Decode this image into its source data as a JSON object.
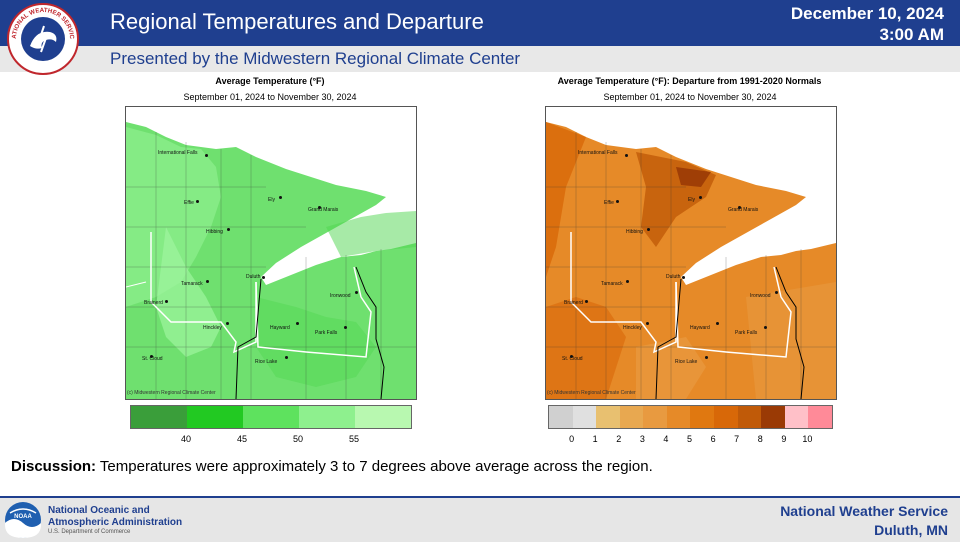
{
  "header": {
    "logo_text": "NATIONAL WEATHER SERVICE",
    "title": "Regional Temperatures and Departure",
    "date": "December 10, 2024",
    "time": "3:00 AM",
    "subtitle": "Presented by the Midwestern Regional Climate Center"
  },
  "left_map": {
    "title": "Average Temperature (°F)",
    "period": "September 01, 2024 to November 30, 2024",
    "credit": "(c) Midwestern Regional Climate Center",
    "legend_colors": [
      "#3a9e3a",
      "#22c922",
      "#5ee25e",
      "#8ef08e",
      "#b8f8b0"
    ],
    "legend_ticks": [
      "40",
      "45",
      "50",
      "55"
    ]
  },
  "right_map": {
    "title": "Average Temperature (°F): Departure from 1991-2020 Normals",
    "period": "September 01, 2024 to November 30, 2024",
    "credit": "(c) Midwestern Regional Climate Center",
    "legend_colors": [
      "#d0d0d0",
      "#e0e0e0",
      "#e8c070",
      "#e8a850",
      "#e89a40",
      "#e68a28",
      "#e07810",
      "#d86808",
      "#c05a08",
      "#9a3a05",
      "#ffc0c8",
      "#ff8a98"
    ],
    "legend_ticks": [
      "0",
      "1",
      "2",
      "3",
      "4",
      "5",
      "6",
      "7",
      "8",
      "9",
      "10"
    ]
  },
  "cities": {
    "intl_falls": "International Falls",
    "effie": "Effie",
    "ely": "Ely",
    "grand_marais": "Grand Marais",
    "hibbing": "Hibbing",
    "duluth": "Duluth",
    "tamarack": "Tamarack",
    "brainerd": "Brainerd",
    "ironwood": "Ironwood",
    "hinckley": "Hinckley",
    "hayward": "Hayward",
    "park_falls": "Park Falls",
    "st_cloud": "St. Cloud",
    "rice_lake": "Rice Lake"
  },
  "discussion": {
    "label": "Discussion:",
    "text": " Temperatures were approximately 3 to 7 degrees above average across the region."
  },
  "footer": {
    "noaa_line1": "National Oceanic and",
    "noaa_line2": "Atmospheric Administration",
    "noaa_dept": "U.S. Department of Commerce",
    "nws_line1": "National  Weather  Service",
    "nws_line2": "Duluth,  MN"
  }
}
